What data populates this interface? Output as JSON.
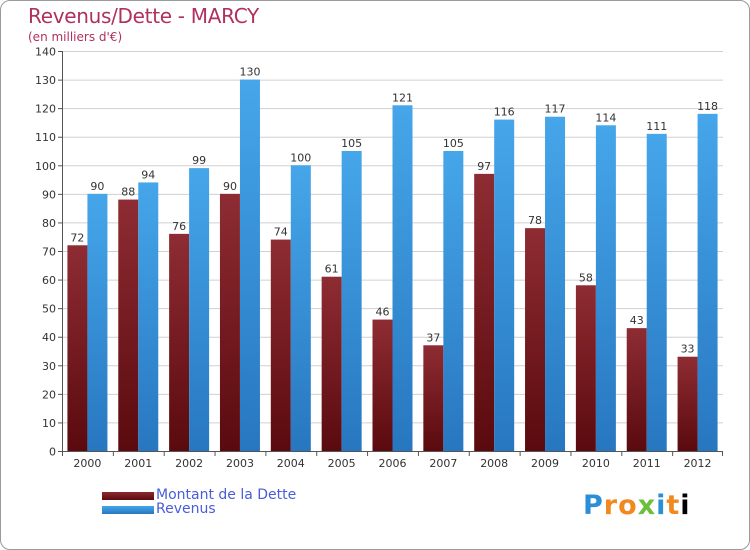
{
  "chart_data": {
    "type": "bar",
    "title": "Revenus/Dette - MARCY",
    "subtitle": "(en milliers d'€)",
    "xlabel": "",
    "ylabel": "",
    "ylim": [
      0,
      140
    ],
    "yticks": [
      0,
      10,
      20,
      30,
      40,
      50,
      60,
      70,
      80,
      90,
      100,
      110,
      120,
      130,
      140
    ],
    "grid": true,
    "categories": [
      "2000",
      "2001",
      "2002",
      "2003",
      "2004",
      "2005",
      "2006",
      "2007",
      "2008",
      "2009",
      "2010",
      "2011",
      "2012"
    ],
    "series": [
      {
        "name": "Montant de la Dette",
        "color": "#8b2a30",
        "values": [
          72,
          88,
          76,
          90,
          74,
          61,
          46,
          37,
          97,
          78,
          58,
          43,
          33
        ]
      },
      {
        "name": "Revenus",
        "color": "#3d9de3",
        "values": [
          90,
          94,
          99,
          130,
          100,
          105,
          121,
          105,
          116,
          117,
          114,
          111,
          118
        ]
      }
    ],
    "legend_position": "bottom-left"
  },
  "brand": {
    "letters": [
      "P",
      "r",
      "o",
      "x",
      "i",
      "t",
      "i"
    ]
  }
}
